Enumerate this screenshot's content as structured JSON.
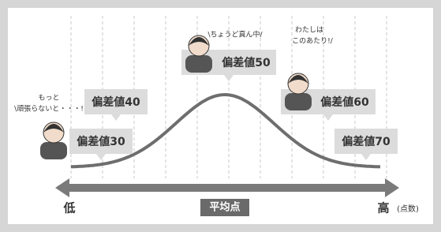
{
  "callouts": [
    {
      "label": "偏差値30",
      "speech": [
        "もっと",
        "\\頑張らないと・・・!"
      ]
    },
    {
      "label": "偏差値40"
    },
    {
      "label": "偏差値50",
      "speech": [
        "\\ちょうど真ん中/"
      ]
    },
    {
      "label": "偏差値60",
      "speech": [
        "わたしは",
        "このあたり!/"
      ]
    },
    {
      "label": "偏差値70"
    }
  ],
  "axis": {
    "low": "低",
    "center": "平均点",
    "high": "高",
    "unit": "(点数)"
  }
}
